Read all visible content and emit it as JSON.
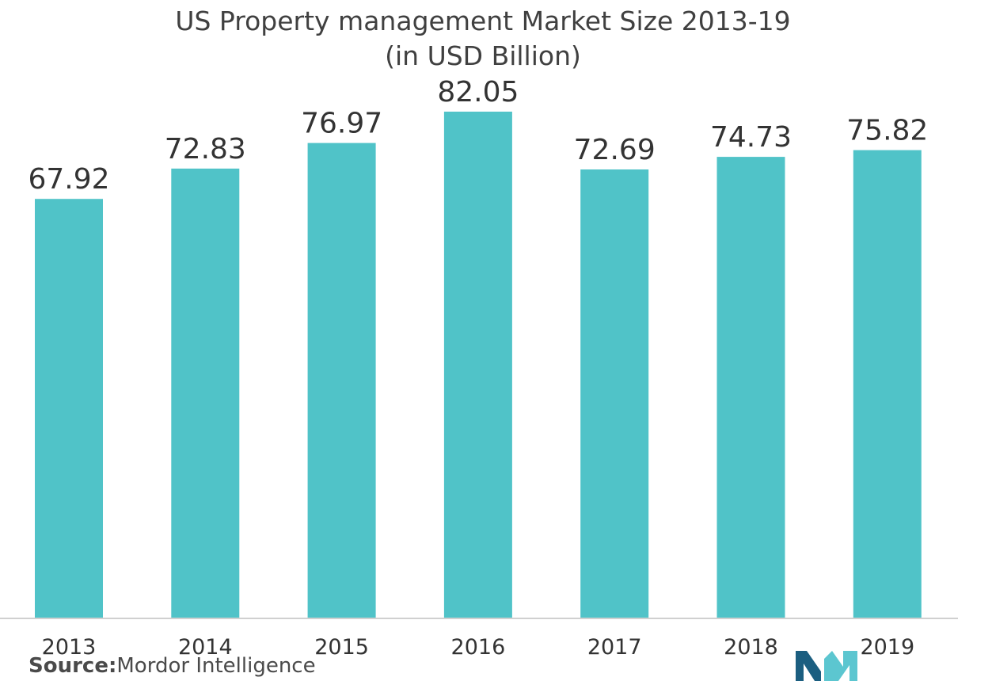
{
  "chart_data": {
    "type": "bar",
    "title": "US Property management Market Size  2013-19",
    "subtitle": "(in USD Billion)",
    "categories": [
      "2013",
      "2014",
      "2015",
      "2016",
      "2017",
      "2018",
      "2019"
    ],
    "values": [
      67.92,
      72.83,
      76.97,
      82.05,
      72.69,
      74.73,
      75.82
    ],
    "value_labels": [
      "67.92",
      "72.83",
      "76.97",
      "82.05",
      "72.69",
      "74.73",
      "75.82"
    ],
    "xlabel": "",
    "ylabel": "",
    "ylim": [
      0,
      82.05
    ],
    "grid": false,
    "legend": "none",
    "bar_color": "#50c3c8"
  },
  "source": {
    "label": "Source:",
    "text": "Mordor Intelligence"
  },
  "logo": {
    "icon": "mordor-intelligence-logo-icon",
    "color_dark": "#1b5e80",
    "color_light": "#5cc6d0"
  }
}
